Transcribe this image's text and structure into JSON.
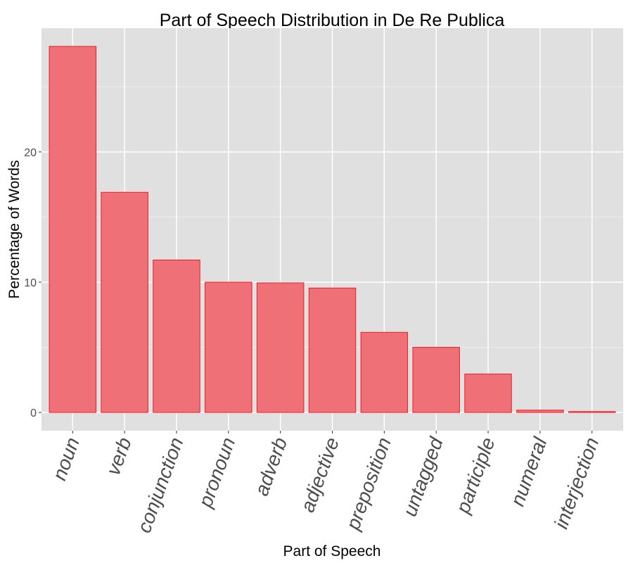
{
  "chart_data": {
    "type": "bar",
    "title": "Part of Speech Distribution in De Re Publica",
    "xlabel": "Part of Speech",
    "ylabel": "Percentage of Words",
    "categories": [
      "noun",
      "verb",
      "conjunction",
      "pronoun",
      "adverb",
      "adjective",
      "preposition",
      "untagged",
      "participle",
      "numeral",
      "interjection"
    ],
    "values": [
      28.1,
      16.9,
      11.7,
      10.0,
      9.95,
      9.55,
      6.15,
      5.0,
      2.95,
      0.18,
      0.07
    ],
    "ylim": [
      -1.4,
      29.5
    ],
    "yticks": [
      0,
      10,
      20
    ],
    "grid": true,
    "colors": {
      "panel": "#e0e0e0",
      "grid_major": "#ffffff",
      "bar_fill": "#f07077",
      "bar_stroke": "#ee1c25",
      "tick_text": "#4d4d4d"
    }
  }
}
